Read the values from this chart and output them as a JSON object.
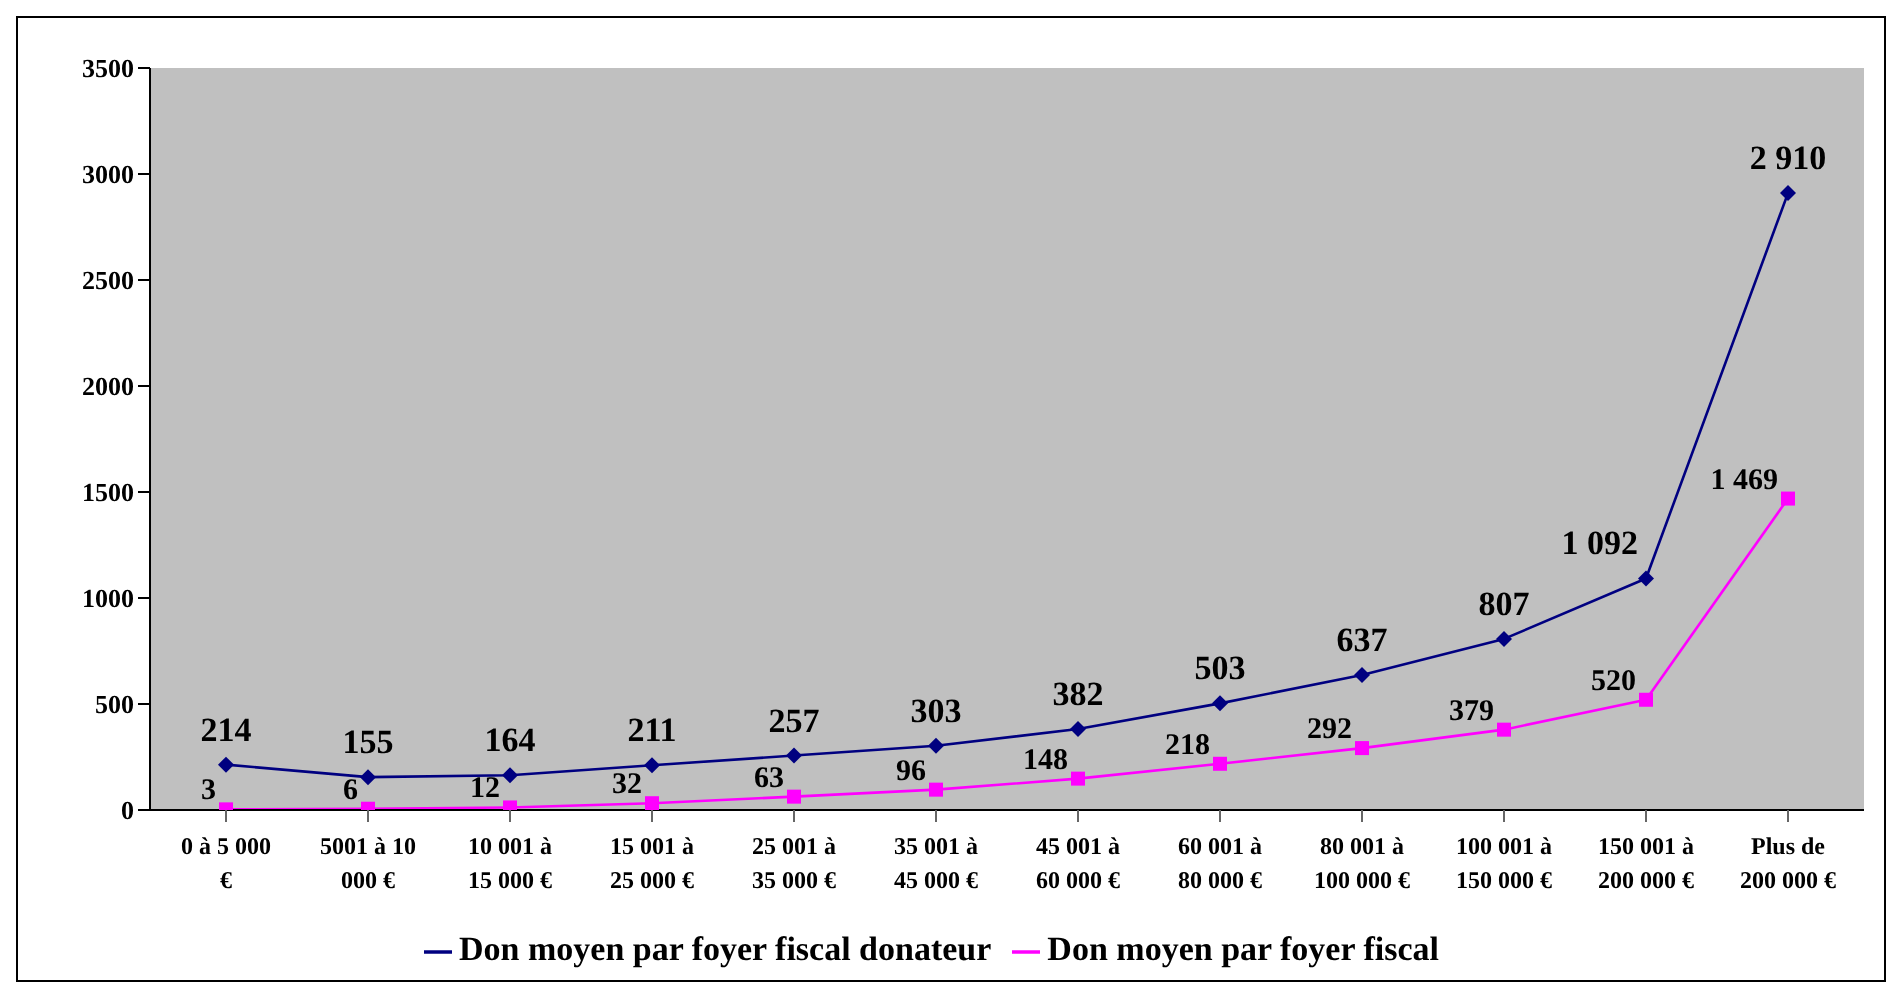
{
  "chart_data": {
    "type": "line",
    "categories": [
      "0 à 5 000 €",
      "5001 à 10 000 €",
      "10 001 à 15 000 €",
      "15 001 à 25 000 €",
      "25 001 à 35 000 €",
      "35 001 à 45 000 €",
      "45 001 à 60 000 €",
      "60 001 à 80 000 €",
      "80 001 à 100 000 €",
      "100 001 à 150 000 €",
      "150 001 à 200 000 €",
      "Plus de 200 000 €"
    ],
    "series": [
      {
        "name": "Don moyen par foyer fiscal donateur",
        "color": "#000080",
        "marker": "diamond",
        "values": [
          214,
          155,
          164,
          211,
          257,
          303,
          382,
          503,
          637,
          807,
          1092,
          2910
        ],
        "value_labels": [
          "214",
          "155",
          "164",
          "211",
          "257",
          "303",
          "382",
          "503",
          "637",
          "807",
          "1 092",
          "2 910"
        ]
      },
      {
        "name": "Don moyen par foyer fiscal",
        "color": "#ff00ff",
        "marker": "square",
        "values": [
          3,
          6,
          12,
          32,
          63,
          96,
          148,
          218,
          292,
          379,
          520,
          1469
        ],
        "value_labels": [
          "3",
          "6",
          "12",
          "32",
          "63",
          "96",
          "148",
          "218",
          "292",
          "379",
          "520",
          "1 469"
        ]
      }
    ],
    "ylim": [
      0,
      3500
    ],
    "yticks": [
      0,
      500,
      1000,
      1500,
      2000,
      2500,
      3000,
      3500
    ],
    "grid": false,
    "legend": "bottom"
  }
}
